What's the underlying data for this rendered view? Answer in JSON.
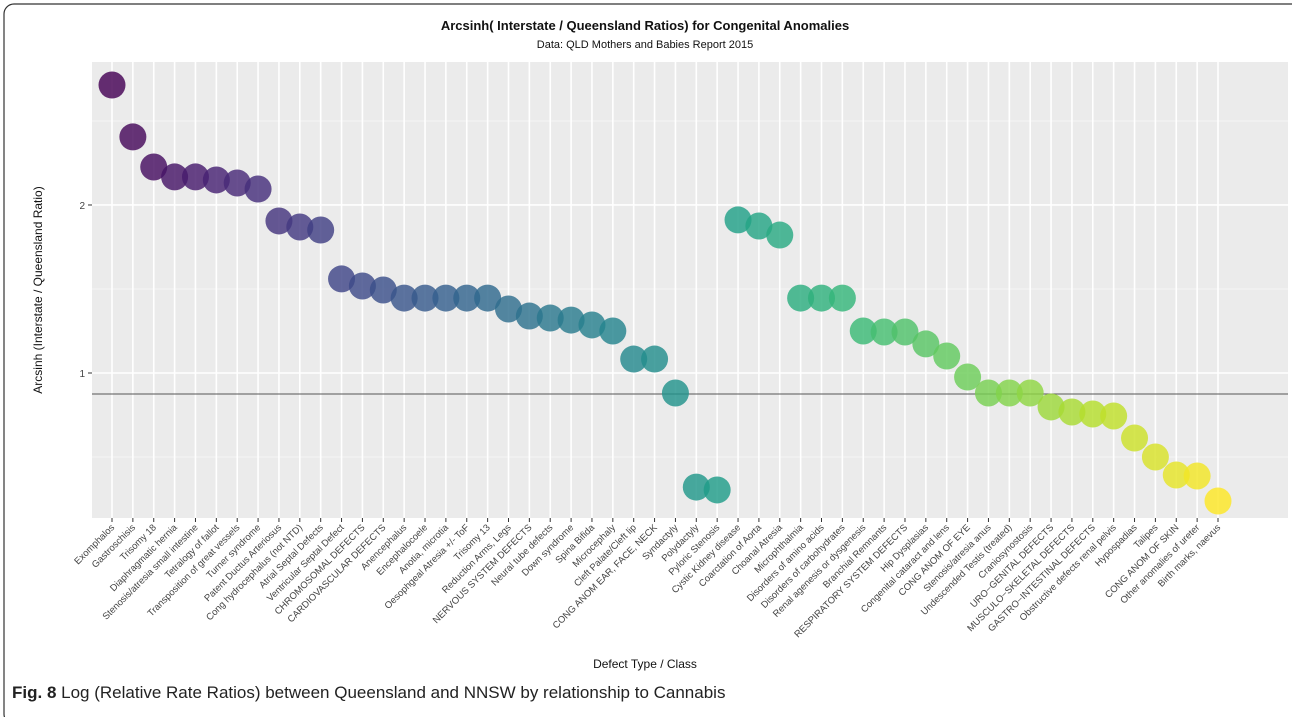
{
  "chart_data": {
    "type": "scatter",
    "title": "Arcsinh( Interstate / Queensland Ratios) for Congenital Anomalies",
    "subtitle": "Data: QLD Mothers and Babies Report 2015",
    "x_label": "Defect Type / Class",
    "y_label": "Arcsinh (Interstate / Queensland Ratio)",
    "categories": [
      "Exomphalos",
      "Gastroschisis",
      "Trisomy 18",
      "Diaphragmatic hernia",
      "Stenosis/atresia small intestine",
      "Tetralogy of fallot",
      "Transposition of great vessels",
      "Turner syndrome",
      "Patent Ductus Arteriosus",
      "Cong hydrocephalus (not NTD)",
      "Atrial Septal Defects",
      "Ventricular Septal Defect",
      "CHROMOSOMAL DEFECTS",
      "CARDIOVASCULAR DEFECTS",
      "Anencephalus",
      "Encephalocoele",
      "Anotia, microtia",
      "Oesophgeal Atresia +/- ToF",
      "Trisomy 13",
      "Reduction Arms, Legs",
      "NERVOUS SYSTEM DEFECTS",
      "Neural tube defects",
      "Down syndrome",
      "Spina Bifida",
      "Microcephaly",
      "Cleft Palate/Cleft lip",
      "CONG ANOM EAR, FACE, NECK",
      "Syndactyly",
      "Polydactyly",
      "Pyloric Stenosis",
      "Cystic Kidney disease",
      "Coarctation of Aorta",
      "Choanal Atresia",
      "Microphthalmia",
      "Disorders of amino acids",
      "Disorders of carbohydrates",
      "Renal agenesis or dysgenesis",
      "Branchial Remnants",
      "RESPIRATORY SYSTEM DEFECTS",
      "Hip Dysplasias",
      "Congenital cataract and lens",
      "CONG ANOM OF EYE",
      "Stenosis/atresia anus",
      "Undescended Testis (treated)",
      "Craniosynostosis",
      "URO−GENITAL DEFECTS",
      "MUSCULO−SKELETAL DEFECTS",
      "GASTRO−INTESTINAL DEFECTS",
      "Obstructive defects renal pelvis",
      "Hypospadias",
      "Talipes",
      "CONG ANOM OF SKIN",
      "Other anomalies of ureter",
      "Birth marks, naevus"
    ],
    "values": [
      2.714,
      2.405,
      2.226,
      2.167,
      2.167,
      2.149,
      2.131,
      2.095,
      1.905,
      1.869,
      1.851,
      1.56,
      1.518,
      1.494,
      1.446,
      1.446,
      1.446,
      1.446,
      1.446,
      1.381,
      1.339,
      1.327,
      1.315,
      1.286,
      1.25,
      1.083,
      1.083,
      0.881,
      0.321,
      0.304,
      1.911,
      1.875,
      1.821,
      1.446,
      1.446,
      1.446,
      1.25,
      1.244,
      1.244,
      1.173,
      1.101,
      0.976,
      0.881,
      0.881,
      0.881,
      0.798,
      0.768,
      0.756,
      0.744,
      0.613,
      0.5,
      0.393,
      0.387,
      0.238
    ],
    "colormap": "viridis",
    "ylim": [
      0.137,
      2.851
    ],
    "yticks": [
      1,
      2
    ],
    "minor_grid": [
      0.5,
      1.5,
      2.5
    ],
    "hline": 0.875,
    "grid": true
  },
  "caption": {
    "label": "Fig. 8",
    "text": "Log (Relative Rate Ratios) between Queensland and NNSW by relationship to Cannabis"
  }
}
